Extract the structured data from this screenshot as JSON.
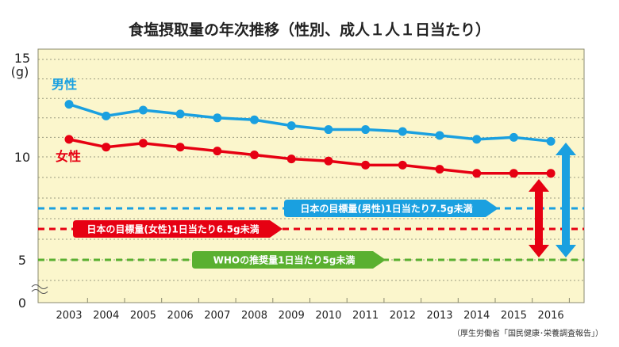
{
  "chart_data": {
    "type": "line",
    "title": "食塩摂取量の年次推移（性別、成人１人１日当たり）",
    "ylabel": "(g)",
    "xlabel": "",
    "ylim": [
      0,
      15
    ],
    "y_ticks": [
      "15",
      "10",
      "5",
      "0"
    ],
    "x": [
      "2003",
      "2004",
      "2005",
      "2006",
      "2007",
      "2008",
      "2009",
      "2010",
      "2011",
      "2012",
      "2013",
      "2014",
      "2015",
      "2016"
    ],
    "series": [
      {
        "name": "男性",
        "color": "#1aa0e0",
        "values": [
          12.7,
          12.1,
          12.4,
          12.2,
          12.0,
          11.9,
          11.6,
          11.4,
          11.4,
          11.3,
          11.1,
          10.9,
          11.0,
          10.8
        ]
      },
      {
        "name": "女性",
        "color": "#e60012",
        "values": [
          10.9,
          10.5,
          10.7,
          10.5,
          10.3,
          10.1,
          9.9,
          9.8,
          9.6,
          9.6,
          9.4,
          9.2,
          9.2,
          9.2
        ]
      }
    ],
    "reference_lines": [
      {
        "label": "日本の目標量(男性)1日当たり7.5g未満",
        "value": 7.5,
        "color": "#1aa0e0"
      },
      {
        "label": "日本の目標量(女性)1日当たり6.5g未満",
        "value": 6.5,
        "color": "#e60012"
      },
      {
        "label": "WHOの推奨量1日当たり5g未満",
        "value": 5,
        "color": "#5ab030"
      }
    ],
    "source": "（厚生労働省「国民健康･栄養調査報告」）",
    "grid": true,
    "background": "#fbf6cc"
  }
}
